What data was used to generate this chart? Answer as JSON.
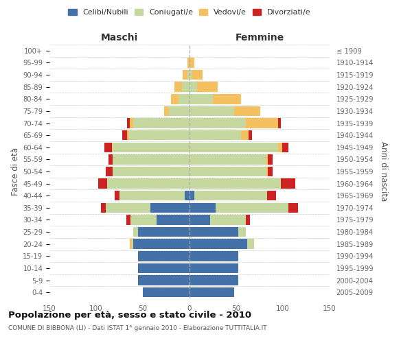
{
  "age_groups_bottom_to_top": [
    "0-4",
    "5-9",
    "10-14",
    "15-19",
    "20-24",
    "25-29",
    "30-34",
    "35-39",
    "40-44",
    "45-49",
    "50-54",
    "55-59",
    "60-64",
    "65-69",
    "70-74",
    "75-79",
    "80-84",
    "85-89",
    "90-94",
    "95-99",
    "100+"
  ],
  "birth_years_bottom_to_top": [
    "2005-2009",
    "2000-2004",
    "1995-1999",
    "1990-1994",
    "1985-1989",
    "1980-1984",
    "1975-1979",
    "1970-1974",
    "1965-1969",
    "1960-1964",
    "1955-1959",
    "1950-1954",
    "1945-1949",
    "1940-1944",
    "1935-1939",
    "1930-1934",
    "1925-1929",
    "1920-1924",
    "1915-1919",
    "1910-1914",
    "≤ 1909"
  ],
  "maschi_celibi": [
    50,
    55,
    55,
    55,
    60,
    55,
    35,
    42,
    5,
    0,
    0,
    0,
    0,
    0,
    0,
    0,
    0,
    0,
    0,
    0,
    0
  ],
  "maschi_coniugati": [
    0,
    0,
    0,
    0,
    2,
    5,
    28,
    48,
    70,
    88,
    82,
    82,
    82,
    65,
    60,
    22,
    12,
    8,
    2,
    0,
    0
  ],
  "maschi_vedovi": [
    0,
    0,
    0,
    0,
    2,
    0,
    0,
    0,
    0,
    0,
    0,
    0,
    1,
    2,
    4,
    5,
    8,
    8,
    5,
    2,
    0
  ],
  "maschi_divorziati": [
    0,
    0,
    0,
    0,
    0,
    0,
    5,
    5,
    5,
    10,
    8,
    5,
    8,
    5,
    3,
    0,
    0,
    0,
    0,
    0,
    0
  ],
  "femmine_nubili": [
    48,
    52,
    52,
    52,
    62,
    52,
    22,
    28,
    5,
    0,
    0,
    0,
    0,
    0,
    0,
    0,
    0,
    0,
    0,
    0,
    0
  ],
  "femmine_coniugate": [
    0,
    0,
    0,
    0,
    7,
    8,
    38,
    78,
    78,
    98,
    82,
    82,
    95,
    55,
    60,
    48,
    25,
    8,
    2,
    0,
    0
  ],
  "femmine_vedove": [
    0,
    0,
    0,
    0,
    0,
    0,
    0,
    0,
    0,
    0,
    2,
    2,
    4,
    8,
    35,
    28,
    30,
    22,
    12,
    5,
    0
  ],
  "femmine_divorziate": [
    0,
    0,
    0,
    0,
    0,
    0,
    5,
    10,
    10,
    15,
    5,
    5,
    7,
    4,
    3,
    0,
    0,
    0,
    0,
    0,
    0
  ],
  "color_celibi": "#4472a8",
  "color_coniugati": "#c5d8a0",
  "color_vedovi": "#f5c060",
  "color_divorziati": "#cc2222",
  "title": "Popolazione per età, sesso e stato civile - 2010",
  "subtitle": "COMUNE DI BIBBONA (LI) - Dati ISTAT 1° gennaio 2010 - Elaborazione TUTTITALIA.IT",
  "xlabel_maschi": "Maschi",
  "xlabel_femmine": "Femmine",
  "ylabel_left": "Fasce di età",
  "ylabel_right": "Anni di nascita",
  "xlim": 150,
  "bg_color": "#ffffff",
  "grid_color": "#cccccc"
}
